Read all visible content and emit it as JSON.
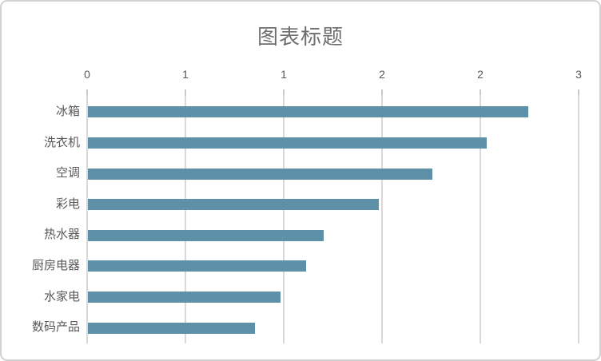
{
  "chart": {
    "title": "图表标题",
    "bar_color": "#5e91a8",
    "gridline_color": "#d9d9d9",
    "tick_color": "#c9c9c9",
    "title_color": "#6e6e6e",
    "label_color": "#595959",
    "background_color": "#ffffff",
    "border_color": "#d2d2d2"
  },
  "chart_data": {
    "type": "bar",
    "orientation": "horizontal",
    "title": "图表标题",
    "categories": [
      "冰箱",
      "洗衣机",
      "空调",
      "彩电",
      "热水器",
      "厨房电器",
      "水家电",
      "数码产品"
    ],
    "values": [
      2.24,
      2.03,
      1.75,
      1.48,
      1.2,
      1.11,
      0.98,
      0.85
    ],
    "xlabel": "",
    "ylabel": "",
    "xlim": [
      0,
      2.5
    ],
    "x_ticks": [
      0,
      0.5,
      1,
      1.5,
      2,
      2.5
    ],
    "x_tick_labels": [
      "0",
      "1",
      "1",
      "2",
      "2",
      "3"
    ],
    "grid": true,
    "legend": false,
    "value_axis_position": "top"
  }
}
